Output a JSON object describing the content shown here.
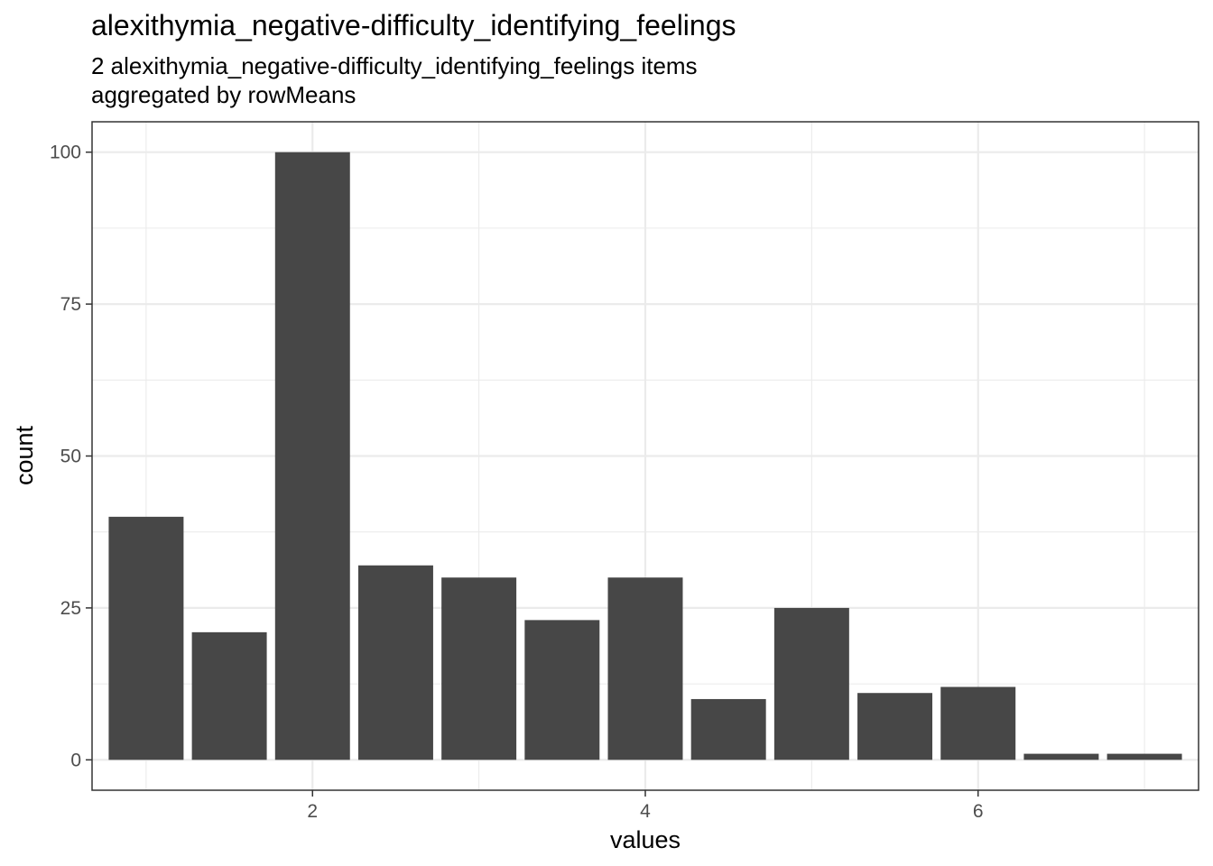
{
  "chart_data": {
    "type": "bar",
    "title": "alexithymia_negative-difficulty_identifying_feelings",
    "subtitle_lines": [
      "2 alexithymia_negative-difficulty_identifying_feelings items",
      "aggregated by rowMeans"
    ],
    "xlabel": "values",
    "ylabel": "count",
    "x": [
      1,
      1.5,
      2,
      2.5,
      3,
      3.5,
      4,
      4.5,
      5,
      5.5,
      6,
      6.5,
      7
    ],
    "values": [
      40,
      21,
      100,
      32,
      30,
      23,
      30,
      10,
      25,
      11,
      12,
      1,
      1
    ],
    "bar_width": 0.45,
    "xlim": [
      0.675,
      7.325
    ],
    "ylim": [
      -5,
      105
    ],
    "x_ticks": [
      2,
      4,
      6
    ],
    "x_tick_labels": [
      "2",
      "4",
      "6"
    ],
    "y_ticks": [
      0,
      25,
      50,
      75,
      100
    ],
    "y_tick_labels": [
      "0",
      "25",
      "50",
      "75",
      "100"
    ],
    "grid": true,
    "bar_color": "#474747",
    "grid_color": "#ebebeb",
    "background": "#ffffff",
    "theme": "bw"
  }
}
